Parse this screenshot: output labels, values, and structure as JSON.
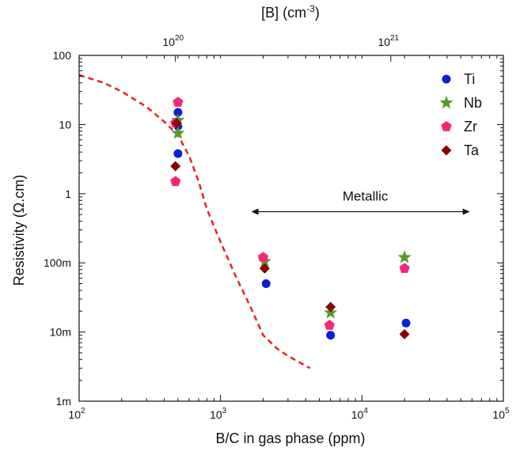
{
  "chart_data": {
    "type": "scatter",
    "title": "",
    "xlabel": "B/C in gas phase (ppm)",
    "ylabel": "Resistivity (Ω.cm)",
    "top_xlabel": "[B] (cm⁻³)",
    "x_scale": "log",
    "y_scale": "log",
    "xlim": [
      100,
      100000
    ],
    "ylim": [
      0.001,
      100
    ],
    "x_ticks": [
      {
        "value": 100,
        "base": "10",
        "exp": "2"
      },
      {
        "value": 1000,
        "base": "10",
        "exp": "3"
      },
      {
        "value": 10000,
        "base": "10",
        "exp": "4"
      },
      {
        "value": 100000,
        "base": "10",
        "exp": "5"
      }
    ],
    "y_ticks": [
      {
        "value": 0.001,
        "label": "1m"
      },
      {
        "value": 0.01,
        "label": "10m"
      },
      {
        "value": 0.1,
        "label": "100m"
      },
      {
        "value": 1,
        "label": "1"
      },
      {
        "value": 10,
        "label": "10"
      },
      {
        "value": 100,
        "label": "100"
      }
    ],
    "top_ticks": [
      {
        "x": 480,
        "base": "10",
        "exp": "20"
      },
      {
        "x": 16000,
        "base": "10",
        "exp": "21"
      }
    ],
    "grid": false,
    "legend_position": "top-right",
    "series": [
      {
        "name": "Ti",
        "marker": "circle",
        "color": "#0b1fd6",
        "points": [
          [
            500,
            15
          ],
          [
            500,
            9.5
          ],
          [
            500,
            3.8
          ],
          [
            2100,
            0.05
          ],
          [
            6000,
            0.009
          ],
          [
            20500,
            0.0135
          ]
        ]
      },
      {
        "name": "Nb",
        "marker": "star",
        "color": "#5a9a2c",
        "points": [
          [
            500,
            11.5
          ],
          [
            500,
            7.5
          ],
          [
            2050,
            0.105
          ],
          [
            6000,
            0.019
          ],
          [
            20000,
            0.12
          ]
        ]
      },
      {
        "name": "Zr",
        "marker": "pentagon",
        "color": "#f5277a",
        "points": [
          [
            500,
            21
          ],
          [
            480,
            10.5
          ],
          [
            480,
            1.5
          ],
          [
            2000,
            0.12
          ],
          [
            5900,
            0.0125
          ],
          [
            20000,
            0.083
          ]
        ]
      },
      {
        "name": "Ta",
        "marker": "diamond",
        "color": "#8b0000",
        "points": [
          [
            490,
            10.5
          ],
          [
            480,
            2.5
          ],
          [
            2050,
            0.083
          ],
          [
            6000,
            0.023
          ],
          [
            20000,
            0.0093
          ]
        ]
      }
    ],
    "fit_curve": {
      "style": "dashed",
      "color": "#e8221f",
      "points": [
        [
          100,
          52
        ],
        [
          150,
          40
        ],
        [
          200,
          30
        ],
        [
          300,
          18
        ],
        [
          400,
          11
        ],
        [
          500,
          7
        ],
        [
          600,
          3.5
        ],
        [
          700,
          1.5
        ],
        [
          800,
          0.6
        ],
        [
          1000,
          0.2
        ],
        [
          1300,
          0.06
        ],
        [
          1600,
          0.025
        ],
        [
          2000,
          0.009
        ],
        [
          2500,
          0.0058
        ],
        [
          3000,
          0.0045
        ],
        [
          4300,
          0.003
        ]
      ]
    },
    "annotations": [
      {
        "text": "Metallic",
        "type": "double-arrow",
        "x_from": 1650,
        "x_to": 58000,
        "y": 0.55
      }
    ]
  }
}
